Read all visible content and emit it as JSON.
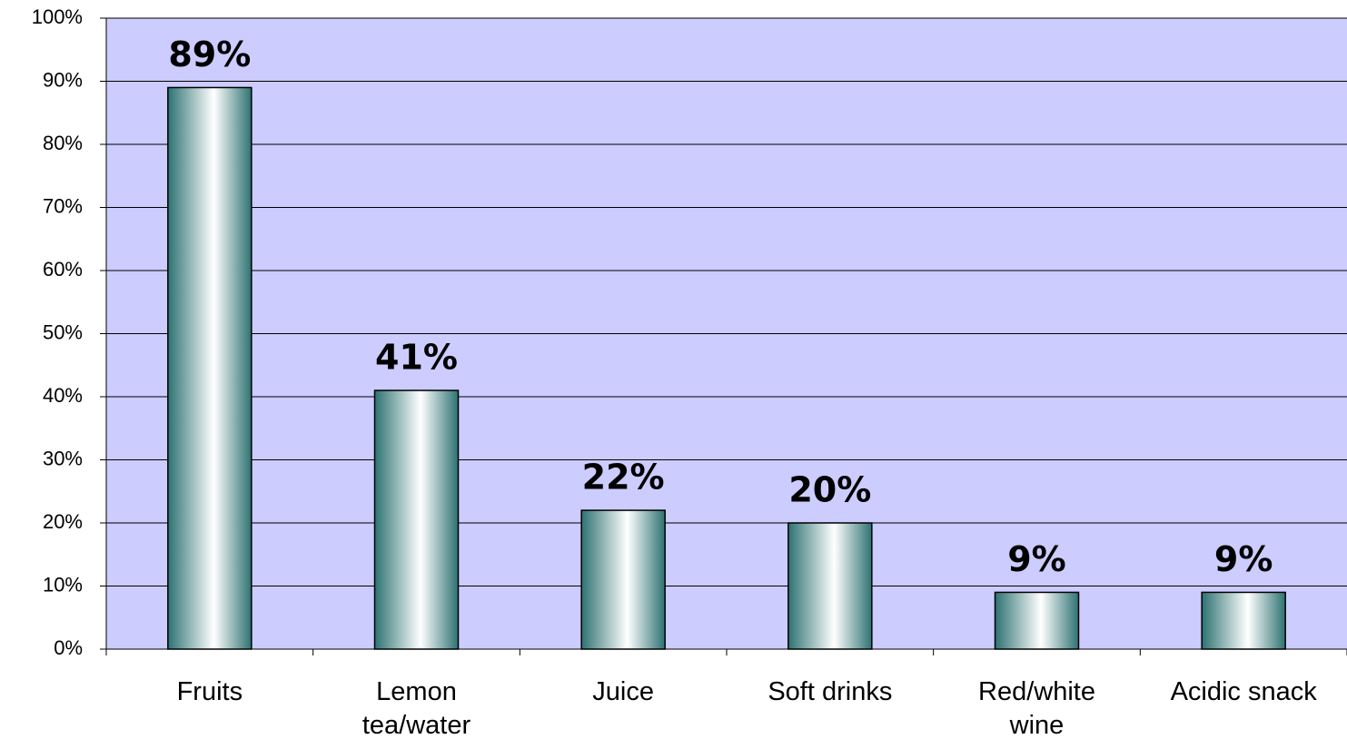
{
  "chart_data": {
    "type": "bar",
    "categories": [
      "Fruits",
      "Lemon\ntea/water",
      "Juice",
      "Soft drinks",
      "Red/white\nwine",
      "Acidic snack"
    ],
    "values": [
      89,
      41,
      22,
      20,
      9,
      9
    ],
    "value_labels": [
      "89%",
      "41%",
      "22%",
      "20%",
      "9%",
      "9%"
    ],
    "color": "#2e7272",
    "background": "#ccccff",
    "ylim": [
      0,
      100
    ],
    "yticks": [
      {
        "value": 0,
        "label": "0%"
      },
      {
        "value": 10,
        "label": "10%"
      },
      {
        "value": 20,
        "label": "20%"
      },
      {
        "value": 30,
        "label": "30%"
      },
      {
        "value": 40,
        "label": "40%"
      },
      {
        "value": 50,
        "label": "50%"
      },
      {
        "value": 60,
        "label": "60%"
      },
      {
        "value": 70,
        "label": "70%"
      },
      {
        "value": 80,
        "label": "80%"
      },
      {
        "value": 90,
        "label": "90%"
      },
      {
        "value": 100,
        "label": "100%"
      }
    ],
    "grid": true
  }
}
